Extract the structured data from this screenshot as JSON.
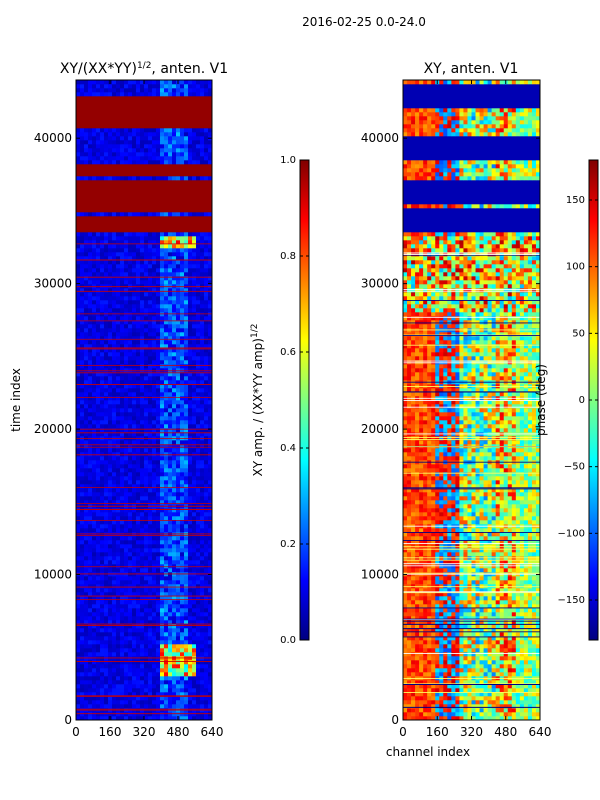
{
  "figure": {
    "suptitle": "2016-02-25 0.0-24.0"
  },
  "chart_data": [
    {
      "type": "heatmap",
      "title": "XY/(XX*YY)^1/2, anten. V1",
      "title_main": "XY/(XX*YY)",
      "title_exp": "1/2",
      "title_tail": ", anten. V1",
      "xlabel": "",
      "ylabel": "time index",
      "xlim": [
        0,
        640
      ],
      "ylim": [
        0,
        44000
      ],
      "xticks": [
        0,
        160,
        320,
        480,
        640
      ],
      "xtick_labels": [
        "0",
        "160",
        "320",
        "480",
        "640"
      ],
      "yticks": [
        0,
        10000,
        20000,
        30000,
        40000
      ],
      "ytick_labels": [
        "0",
        "10000",
        "20000",
        "30000",
        "40000"
      ],
      "saturated_bands": [
        [
          33500,
          34700
        ],
        [
          35000,
          37200
        ],
        [
          37400,
          38200
        ],
        [
          40600,
          43000
        ]
      ],
      "bright_patch_rows": [
        [
          32400,
          33200
        ],
        [
          3000,
          5200
        ]
      ],
      "colorbar": {
        "label": "XY amp. / (XX*YY amp)^1/2",
        "label_main": "XY amp. / (XX*YY amp)",
        "label_exp": "1/2",
        "range": [
          0.0,
          1.0
        ],
        "ticks": [
          0.0,
          0.2,
          0.4,
          0.6,
          0.8,
          1.0
        ],
        "tick_labels": [
          "0.0",
          "0.2",
          "0.4",
          "0.6",
          "0.8",
          "1.0"
        ]
      }
    },
    {
      "type": "heatmap",
      "title": "XY, anten. V1",
      "xlabel": "channel index",
      "ylabel": "",
      "xlim": [
        0,
        640
      ],
      "ylim": [
        0,
        44000
      ],
      "xticks": [
        0,
        160,
        320,
        480,
        640
      ],
      "xtick_labels": [
        "0",
        "160",
        "320",
        "480",
        "640"
      ],
      "yticks": [
        0,
        10000,
        20000,
        30000,
        40000
      ],
      "ytick_labels": [
        "0",
        "10000",
        "20000",
        "30000",
        "40000"
      ],
      "dark_bands": [
        [
          33600,
          35200
        ],
        [
          35400,
          37200
        ],
        [
          38400,
          40200
        ],
        [
          42000,
          43600
        ]
      ],
      "colorbar": {
        "label": "phase (deg)",
        "range": [
          -180,
          180
        ],
        "ticks": [
          -150,
          -100,
          -50,
          0,
          50,
          100,
          150
        ],
        "tick_labels": [
          "−150",
          "−100",
          "−50",
          "0",
          "50",
          "100",
          "150"
        ]
      }
    }
  ]
}
